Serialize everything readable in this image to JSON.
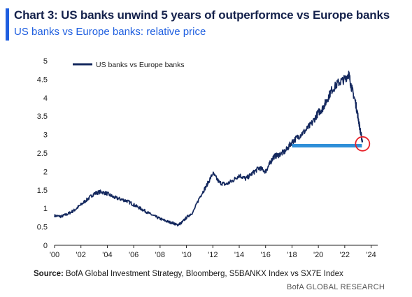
{
  "header": {
    "title": "Chart 3: US banks unwind 5 years of outperformce vs Europe banks",
    "subtitle": "US banks vs Europe banks: relative price"
  },
  "footer": {
    "source_label": "Source:",
    "source_text": "BofA Global Investment Strategy, Bloomberg, S5BANKX Index vs SX7E Index",
    "brand": "BofA GLOBAL RESEARCH"
  },
  "colors": {
    "series": "#14285e",
    "highlight_line": "#2f8fd8",
    "highlight_circle": "#e8222a",
    "title_accent": "#1f5fe0"
  },
  "chart_data": {
    "type": "line",
    "legend": {
      "label": "US banks vs Europe banks",
      "placement": "top-left"
    },
    "x_ticks": [
      "'00",
      "'02",
      "'04",
      "'06",
      "'08",
      "'10",
      "'12",
      "'14",
      "'16",
      "'18",
      "'20",
      "'22",
      "'24"
    ],
    "x_tick_years": [
      2000,
      2002,
      2004,
      2006,
      2008,
      2010,
      2012,
      2014,
      2016,
      2018,
      2020,
      2022,
      2024
    ],
    "xlim": [
      2000,
      2024.5
    ],
    "y_ticks": [
      "0",
      "0.5",
      "1",
      "1.5",
      "2",
      "2.5",
      "3",
      "3.5",
      "4",
      "4.5",
      "5"
    ],
    "ylim": [
      0,
      5
    ],
    "grid": false,
    "series": [
      {
        "name": "US banks vs Europe banks",
        "x": [
          2000.0,
          2000.5,
          2001.0,
          2001.5,
          2002.0,
          2002.5,
          2003.0,
          2003.5,
          2004.0,
          2004.5,
          2005.0,
          2005.5,
          2006.0,
          2006.5,
          2007.0,
          2007.5,
          2008.0,
          2008.5,
          2009.0,
          2009.3,
          2009.6,
          2010.0,
          2010.5,
          2011.0,
          2011.5,
          2012.0,
          2012.5,
          2013.0,
          2013.5,
          2014.0,
          2014.5,
          2015.0,
          2015.5,
          2016.0,
          2016.3,
          2016.6,
          2017.0,
          2017.5,
          2018.0,
          2018.5,
          2019.0,
          2019.5,
          2020.0,
          2020.3,
          2020.6,
          2021.0,
          2021.5,
          2022.0,
          2022.3,
          2022.5,
          2022.8,
          2023.0,
          2023.2,
          2023.35
        ],
        "values": [
          0.8,
          0.78,
          0.85,
          0.95,
          1.1,
          1.25,
          1.4,
          1.45,
          1.4,
          1.3,
          1.25,
          1.2,
          1.1,
          1.0,
          0.9,
          0.8,
          0.72,
          0.65,
          0.6,
          0.55,
          0.6,
          0.75,
          0.9,
          1.3,
          1.6,
          1.95,
          1.7,
          1.65,
          1.75,
          1.9,
          1.8,
          1.95,
          2.1,
          2.0,
          2.2,
          2.4,
          2.45,
          2.55,
          2.8,
          2.95,
          3.1,
          3.3,
          3.6,
          3.7,
          3.9,
          4.2,
          4.4,
          4.5,
          4.65,
          4.3,
          3.9,
          3.5,
          3.05,
          2.8
        ]
      }
    ],
    "annotations": [
      {
        "type": "horizontal-line",
        "y": 2.7,
        "x_start": 2018.0,
        "x_end": 2023.3
      },
      {
        "type": "circle",
        "x": 2023.35,
        "y": 2.75
      }
    ]
  }
}
